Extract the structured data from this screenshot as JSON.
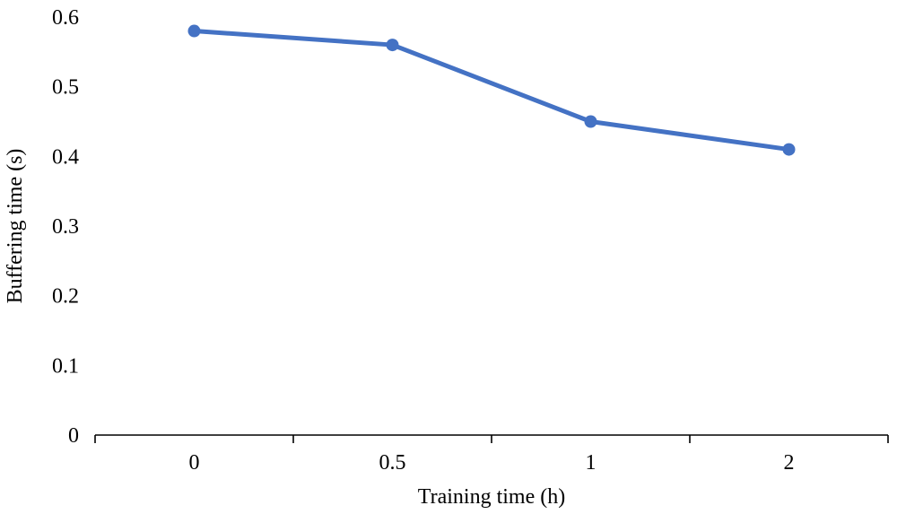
{
  "chart_data": {
    "type": "line",
    "title": "",
    "xlabel": "Training time (h)",
    "ylabel": "Buffering time (s)",
    "categories": [
      "0",
      "0.5",
      "1",
      "2"
    ],
    "series": [
      {
        "values": [
          0.58,
          0.56,
          0.45,
          0.41
        ]
      }
    ],
    "ylim": [
      0,
      0.6
    ],
    "y_ticks": [
      "0",
      "0.1",
      "0.2",
      "0.3",
      "0.4",
      "0.5",
      "0.6"
    ],
    "grid": false,
    "legend": "none",
    "colors": {
      "series": "#4472C4",
      "axis": "#000000"
    }
  }
}
